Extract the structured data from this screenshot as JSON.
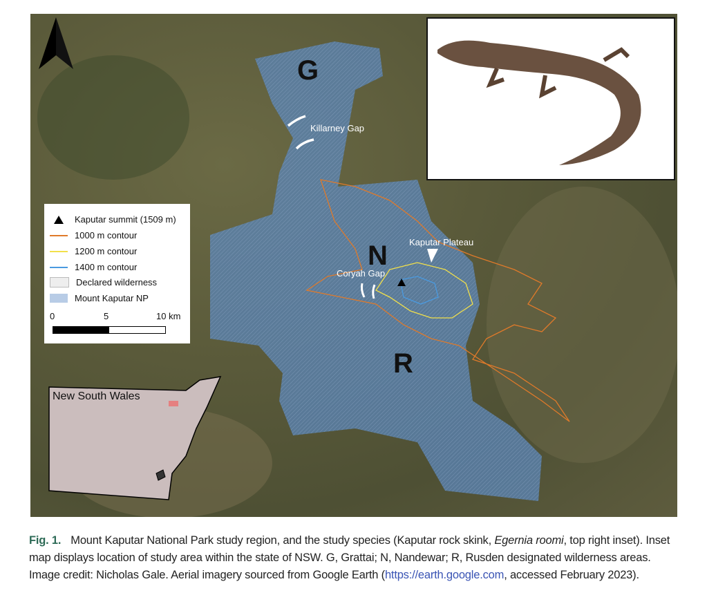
{
  "map": {
    "region_labels": [
      "G",
      "N",
      "R"
    ],
    "place_labels": {
      "killarney": "Killarney Gap",
      "plateau": "Kaputar Plateau",
      "coryah": "Coryah Gap"
    },
    "north_arrow_icon": "north-arrow-icon",
    "legend": {
      "items": [
        {
          "label": "Kaputar summit (1509 m)",
          "symbol": "triangle",
          "color": "#000000"
        },
        {
          "label": "1000 m contour",
          "symbol": "line",
          "color": "#e07a2a"
        },
        {
          "label": "1200 m contour",
          "symbol": "line",
          "color": "#f2e04a"
        },
        {
          "label": "1400 m contour",
          "symbol": "line",
          "color": "#4a9ae0"
        },
        {
          "label": "Declared wilderness",
          "symbol": "hatched",
          "color": "#eeeeee"
        },
        {
          "label": "Mount Kaputar NP",
          "symbol": "fill",
          "color": "#b8cce6"
        }
      ],
      "scale": {
        "ticks": [
          "0",
          "5",
          "10 km"
        ]
      }
    },
    "inset": {
      "label": "New South Wales",
      "state_color": "#cbbdbd",
      "study_area_color": "#e58080"
    },
    "photo_alt": "Kaputar rock skink"
  },
  "caption": {
    "fig": "Fig. 1.",
    "text1": "Mount Kaputar National Park study region, and the study species (Kaputar rock skink, ",
    "species": "Egernia roomi",
    "text2": ", top right inset). Inset map displays location of study area within the state of NSW. G, Grattai; N, Nandewar; R, Rusden designated wilderness areas. Image credit: Nicholas Gale. Aerial imagery sourced from Google Earth (",
    "link": "https://earth.google.com",
    "text3": ", accessed February 2023)."
  }
}
